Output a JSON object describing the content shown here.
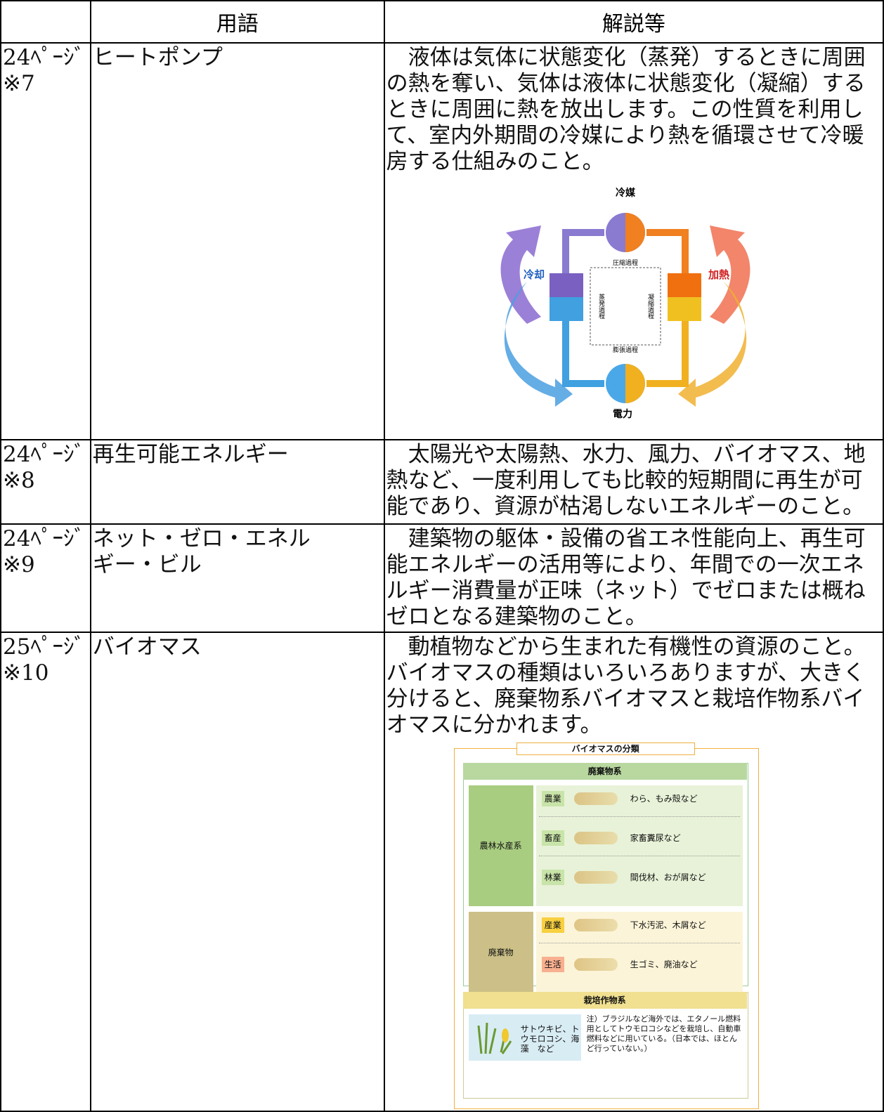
{
  "table": {
    "header": [
      "用語",
      "解説等"
    ],
    "rows": [
      {
        "page": "24ﾍﾟｰｼﾞ",
        "note": "※7",
        "term": "ヒートポンプ",
        "description": "液体は気体に状態変化（蒸発）するときに周囲の熱を奪い、気体は液体に状態変化（凝縮）するときに周囲に熱を放出します。この性質を利用して、室内外期間の冷媒により熱を循環させて冷暖房する仕組みのこと。"
      },
      {
        "page": "24ﾍﾟｰｼﾞ",
        "note": "※8",
        "term": "再生可能エネルギー",
        "description": "太陽光や太陽熱、水力、風力、バイオマス、地熱など、一度利用しても比較的短期間に再生が可能であり、資源が枯渇しないエネルギーのこと。"
      },
      {
        "page": "24ﾍﾟｰｼﾞ",
        "note": "※9",
        "term": "ネット・ゼロ・エネルギー・ビル",
        "description": "建築物の躯体・設備の省エネ性能向上、再生可能エネルギーの活用等により、年間での一次エネルギー消費量が正味（ネット）でゼロまたは概ねゼロとなる建築物のこと。"
      },
      {
        "page": "25ﾍﾟｰｼﾞ",
        "note": "※10",
        "term": "バイオマス",
        "description": "動植物などから生まれた有機性の資源のこと。バイオマスの種類はいろいろありますが、大きく分けると、廃棄物系バイオマスと栽培作物系バイオマスに分かれます。"
      }
    ]
  },
  "heat_pump": {
    "refrigerant": "冷媒",
    "cooling": "冷却",
    "heating": "加熱",
    "power": "電力",
    "evaporation": "蒸発過程",
    "condensation": "凝縮過程",
    "compression": "圧縮過程",
    "expansion": "膨張過程"
  },
  "biomass": {
    "title": "バイオマスの分類",
    "waste_section": "廃棄物系",
    "groups": [
      {
        "name": "農林水産系",
        "items": [
          {
            "label": "農業",
            "example": "わら、もみ殻など"
          },
          {
            "label": "畜産",
            "example": "家畜糞尿など"
          },
          {
            "label": "林業",
            "example": "間伐材、おが屑など"
          }
        ]
      },
      {
        "name": "廃棄物",
        "items": [
          {
            "label": "産業",
            "example": "下水汚泥、木屑など"
          },
          {
            "label": "生活",
            "example": "生ゴミ、廃油など"
          }
        ]
      }
    ],
    "crop_section": "栽培作物系",
    "crops": "サトウキビ、トウモロコシ、海藻　など",
    "note": "注）ブラジルなど海外では、エタノール燃料用としてトウモロコシなどを栽培し、自動車燃料などに用いている。（日本では、ほとんど行っていない。）"
  }
}
